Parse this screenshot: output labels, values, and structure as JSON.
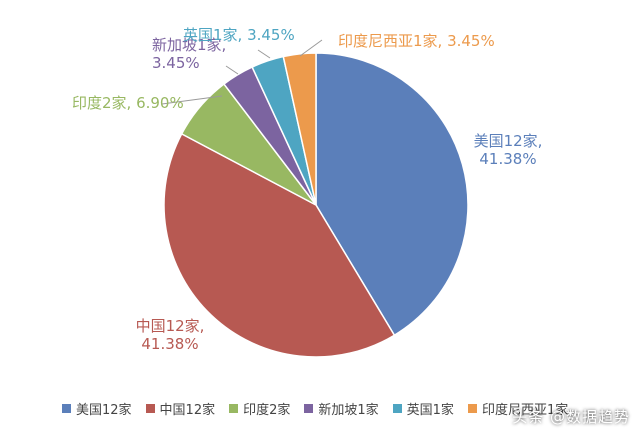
{
  "chart_data": {
    "type": "pie",
    "categories": [
      "美国12家",
      "中国12家",
      "印度2家",
      "新加坡1家",
      "英国1家",
      "印度尼西亚1家"
    ],
    "values": [
      41.38,
      41.38,
      6.9,
      3.45,
      3.45,
      3.45
    ],
    "counts": [
      12,
      12,
      2,
      1,
      1,
      1
    ],
    "colors": [
      "#5b7fba",
      "#b75952",
      "#98b862",
      "#7c64a0",
      "#4ea5c2",
      "#ec9a4c"
    ],
    "data_labels": [
      [
        "美国12家,",
        "41.38%"
      ],
      [
        "中国12家,",
        "41.38%"
      ],
      [
        "印度2家, 6.90%"
      ],
      [
        "新加坡1家,",
        "3.45%"
      ],
      [
        "英国1家, 3.45%"
      ],
      [
        "印度尼西亚1家, 3.45%"
      ]
    ],
    "legend_position": "bottom",
    "start_angle_deg": 0,
    "direction": "clockwise"
  },
  "watermark": "头条 @数据趋势"
}
